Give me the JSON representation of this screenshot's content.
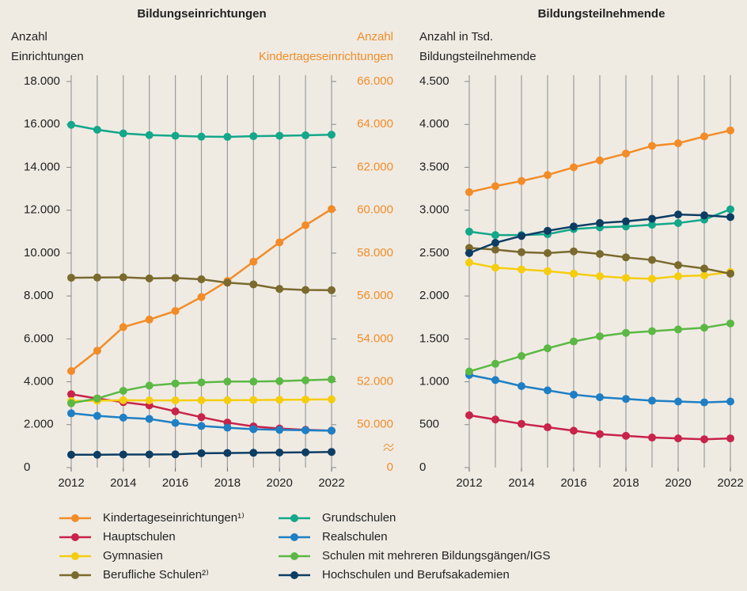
{
  "chart_data": [
    {
      "type": "line",
      "title": "Bildungseinrichtungen",
      "ylabel": [
        "Anzahl",
        "Einrichtungen"
      ],
      "y2label": [
        "Anzahl",
        "Kindertageseinrichtungen"
      ],
      "x": [
        2012,
        2013,
        2014,
        2015,
        2016,
        2017,
        2018,
        2019,
        2020,
        2021,
        2022
      ],
      "xlim": [
        2012,
        2022
      ],
      "xticks": [
        2012,
        2014,
        2016,
        2018,
        2020,
        2022
      ],
      "grid": true,
      "ylim": [
        0,
        18000
      ],
      "yticks": [
        0,
        {
          "value": 2000,
          "label": "2.000"
        },
        {
          "value": 4000,
          "label": "4.000"
        },
        {
          "value": 6000,
          "label": "6.000"
        },
        {
          "value": 8000,
          "label": "8.000"
        },
        {
          "value": 10000,
          "label": "10.000"
        },
        {
          "value": 12000,
          "label": "12.000"
        },
        {
          "value": 14000,
          "label": "14.000"
        },
        {
          "value": 16000,
          "label": "16.000"
        },
        {
          "value": 18000,
          "label": "18.000"
        }
      ],
      "y2lim": [
        48000,
        66000
      ],
      "y2_axis_break": true,
      "y2color": "#f28c28",
      "y2ticks": [
        0,
        {
          "value": 50000,
          "label": "50.000"
        },
        {
          "value": 52000,
          "label": "52.000"
        },
        {
          "value": 54000,
          "label": "54.000"
        },
        {
          "value": 56000,
          "label": "56.000"
        },
        {
          "value": 58000,
          "label": "58.000"
        },
        {
          "value": 60000,
          "label": "60.000"
        },
        {
          "value": 62000,
          "label": "62.000"
        },
        {
          "value": 64000,
          "label": "64.000"
        },
        {
          "value": 66000,
          "label": "66.000"
        }
      ],
      "series": [
        {
          "name": "Kindertageseinrichtungen¹⁾",
          "color": "#f28c28",
          "axis": "y2",
          "values": [
            52500,
            53450,
            54550,
            54900,
            55300,
            55950,
            56700,
            57600,
            58500,
            59300,
            60050
          ]
        },
        {
          "name": "Hauptschulen",
          "color": "#c8234a",
          "values": [
            3420,
            3220,
            3050,
            2900,
            2620,
            2350,
            2100,
            1920,
            1820,
            1760,
            1720
          ]
        },
        {
          "name": "Gymnasien",
          "color": "#f5cd0f",
          "values": [
            3100,
            3120,
            3140,
            3130,
            3130,
            3140,
            3140,
            3150,
            3160,
            3170,
            3180
          ]
        },
        {
          "name": "Berufliche Schulen²⁾",
          "color": "#7a6a2e",
          "values": [
            8850,
            8860,
            8870,
            8820,
            8840,
            8780,
            8620,
            8540,
            8330,
            8280,
            8270
          ]
        },
        {
          "name": "Grundschulen",
          "color": "#14a78a",
          "values": [
            15980,
            15750,
            15580,
            15500,
            15470,
            15430,
            15420,
            15450,
            15470,
            15490,
            15520
          ]
        },
        {
          "name": "Realschulen",
          "color": "#1f7fc4",
          "values": [
            2530,
            2410,
            2330,
            2270,
            2080,
            1940,
            1860,
            1790,
            1760,
            1740,
            1720
          ]
        },
        {
          "name": "Schulen mit mehreren Bildungsgängen/IGS",
          "color": "#5cb845",
          "values": [
            3000,
            3220,
            3580,
            3820,
            3920,
            3970,
            4010,
            4010,
            4030,
            4070,
            4110
          ]
        },
        {
          "name": "Hochschulen und Berufsakademien",
          "color": "#0d3d63",
          "values": [
            600,
            600,
            610,
            610,
            620,
            670,
            680,
            690,
            700,
            710,
            730
          ]
        }
      ]
    },
    {
      "type": "line",
      "title": "Bildungsteilnehmende",
      "ylabel": [
        "Anzahl in Tsd.",
        "Bildungsteilnehmende"
      ],
      "x": [
        2012,
        2013,
        2014,
        2015,
        2016,
        2017,
        2018,
        2019,
        2020,
        2021,
        2022
      ],
      "xlim": [
        2012,
        2022
      ],
      "xticks": [
        2012,
        2014,
        2016,
        2018,
        2020,
        2022
      ],
      "grid": true,
      "ylim": [
        0,
        4500
      ],
      "yticks": [
        0,
        500,
        {
          "value": 1000,
          "label": "1.000"
        },
        {
          "value": 1500,
          "label": "1.500"
        },
        {
          "value": 2000,
          "label": "2.000"
        },
        {
          "value": 2500,
          "label": "2.500"
        },
        {
          "value": 3000,
          "label": "3.000"
        },
        {
          "value": 3500,
          "label": "3.500"
        },
        {
          "value": 4000,
          "label": "4.000"
        },
        {
          "value": 4500,
          "label": "4.500"
        }
      ],
      "series": [
        {
          "color": "#f28c28",
          "values": [
            3210,
            3280,
            3340,
            3410,
            3500,
            3580,
            3660,
            3750,
            3780,
            3860,
            3930
          ]
        },
        {
          "color": "#c8234a",
          "values": [
            610,
            560,
            510,
            470,
            430,
            390,
            370,
            350,
            340,
            330,
            340
          ]
        },
        {
          "color": "#f5cd0f",
          "values": [
            2390,
            2330,
            2310,
            2290,
            2260,
            2230,
            2210,
            2200,
            2230,
            2240,
            2280
          ]
        },
        {
          "color": "#7a6a2e",
          "values": [
            2560,
            2540,
            2510,
            2500,
            2520,
            2490,
            2450,
            2420,
            2360,
            2320,
            2260
          ]
        },
        {
          "color": "#14a78a",
          "values": [
            2750,
            2710,
            2710,
            2720,
            2780,
            2800,
            2810,
            2830,
            2850,
            2890,
            3010
          ]
        },
        {
          "color": "#1f7fc4",
          "values": [
            1080,
            1020,
            950,
            900,
            850,
            820,
            800,
            780,
            770,
            760,
            770
          ]
        },
        {
          "color": "#5cb845",
          "values": [
            1120,
            1210,
            1300,
            1390,
            1470,
            1530,
            1570,
            1590,
            1610,
            1630,
            1680
          ]
        },
        {
          "color": "#0d3d63",
          "values": [
            2500,
            2620,
            2700,
            2760,
            2810,
            2850,
            2870,
            2900,
            2950,
            2940,
            2920
          ]
        }
      ]
    }
  ]
}
